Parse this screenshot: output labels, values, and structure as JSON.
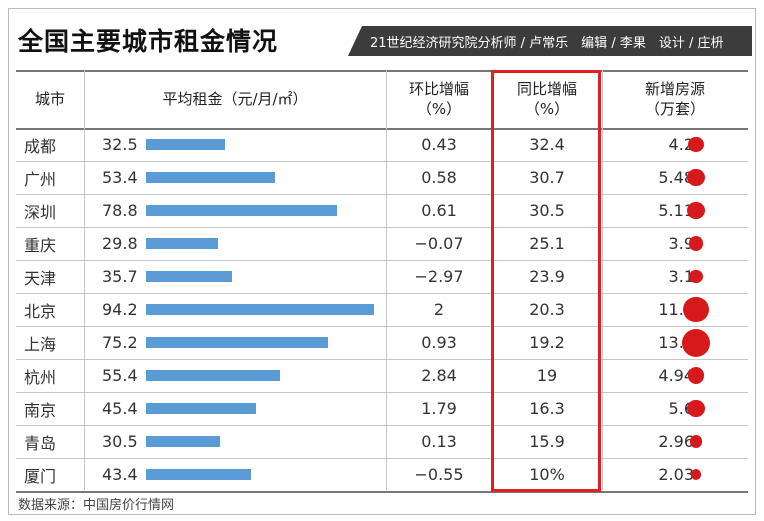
{
  "title": "全国主要城市租金情况",
  "byline": "21世纪经济研究院分析师 / 卢常乐　编辑 / 李果　设计 / 庄枡",
  "source": "数据来源：中国房价行情网",
  "colors": {
    "bar": "#5b9bd5",
    "dot": "#d7191c",
    "highlight": "#e02020"
  },
  "chart_data": {
    "type": "table",
    "title": "全国主要城市租金情况",
    "columns": [
      "城市",
      "平均租金（元/月/㎡）",
      "环比增幅\n（%）",
      "同比增幅\n（%）",
      "新增房源\n（万套）"
    ],
    "rows": [
      {
        "city": "成都",
        "rent": "32.5",
        "mom": "0.43",
        "yoy": "32.4",
        "supply": "4.2"
      },
      {
        "city": "广州",
        "rent": "53.4",
        "mom": "0.58",
        "yoy": "30.7",
        "supply": "5.48"
      },
      {
        "city": "深圳",
        "rent": "78.8",
        "mom": "0.61",
        "yoy": "30.5",
        "supply": "5.11"
      },
      {
        "city": "重庆",
        "rent": "29.8",
        "mom": "−0.07",
        "yoy": "25.1",
        "supply": "3.9"
      },
      {
        "city": "天津",
        "rent": "35.7",
        "mom": "−2.97",
        "yoy": "23.9",
        "supply": "3.1"
      },
      {
        "city": "北京",
        "rent": "94.2",
        "mom": "2",
        "yoy": "20.3",
        "supply": "11.6"
      },
      {
        "city": "上海",
        "rent": "75.2",
        "mom": "0.93",
        "yoy": "19.2",
        "supply": "13.8"
      },
      {
        "city": "杭州",
        "rent": "55.4",
        "mom": "2.84",
        "yoy": "19",
        "supply": "4.94"
      },
      {
        "city": "南京",
        "rent": "45.4",
        "mom": "1.79",
        "yoy": "16.3",
        "supply": "5.6"
      },
      {
        "city": "青岛",
        "rent": "30.5",
        "mom": "0.13",
        "yoy": "15.9",
        "supply": "2.96"
      },
      {
        "city": "厦门",
        "rent": "43.4",
        "mom": "−0.55",
        "yoy": "10%",
        "supply": "2.03"
      }
    ],
    "rent_max": 94.2,
    "supply_max": 13.8,
    "highlighted_column": "同比增幅（%）"
  }
}
